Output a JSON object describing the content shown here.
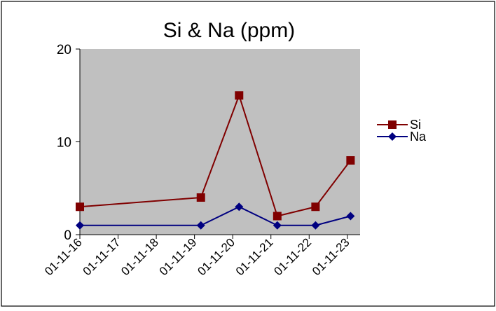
{
  "chart_data": {
    "type": "line",
    "title": "Si & Na (ppm)",
    "xlabel": "",
    "ylabel": "",
    "x_tick_labels": [
      "01-11-16",
      "01-11-17",
      "01-11-18",
      "01-11-19",
      "01-11-20",
      "01-11-21",
      "01-11-22",
      "01-11-23"
    ],
    "y_tick_labels": [
      "0",
      "10",
      "20"
    ],
    "xlim": [
      "01-11-16",
      "01-11-23 08:00"
    ],
    "ylim": [
      0,
      20
    ],
    "grid": false,
    "plot_background": "#c0c0c0",
    "legend_position": "right",
    "series": [
      {
        "name": "Si",
        "color": "#800000",
        "marker": "square",
        "x": [
          "01-11-16 00:00",
          "01-11-19 04:00",
          "01-11-20 04:00",
          "01-11-21 04:00",
          "01-11-22 04:00",
          "01-11-23 02:00"
        ],
        "values": [
          3,
          4,
          15,
          2,
          3,
          8
        ]
      },
      {
        "name": "Na",
        "color": "#000080",
        "marker": "diamond",
        "x": [
          "01-11-16 00:00",
          "01-11-19 04:00",
          "01-11-20 04:00",
          "01-11-21 04:00",
          "01-11-22 04:00",
          "01-11-23 02:00"
        ],
        "values": [
          1,
          1,
          3,
          1,
          1,
          2
        ]
      }
    ]
  }
}
